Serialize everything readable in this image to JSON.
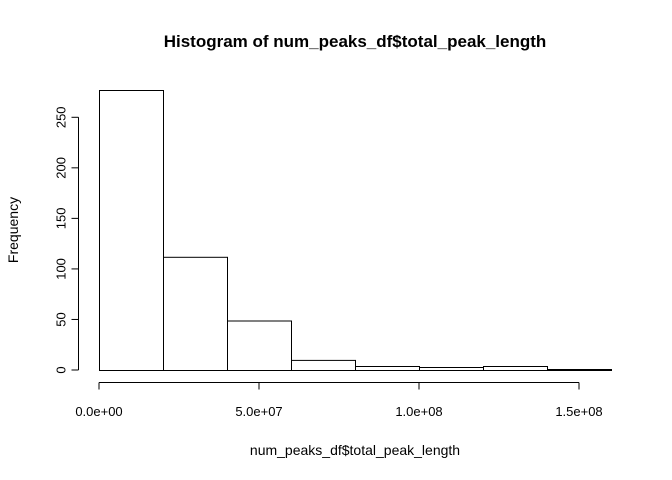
{
  "chart_data": {
    "type": "bar",
    "title": "Histogram of num_peaks_df$total_peak_length",
    "xlabel": "num_peaks_df$total_peak_length",
    "ylabel": "Frequency",
    "bin_edges": [
      0,
      20000000,
      40000000,
      60000000,
      80000000,
      100000000,
      120000000,
      140000000,
      160000000
    ],
    "values": [
      277,
      112,
      49,
      10,
      4,
      3,
      4,
      1
    ],
    "xlim": [
      0,
      160000000
    ],
    "ylim": [
      0,
      277
    ],
    "x_ticks": [
      0,
      50000000,
      100000000,
      150000000
    ],
    "x_tick_labels": [
      "0.0e+00",
      "5.0e+07",
      "1.0e+08",
      "1.5e+08"
    ],
    "y_ticks": [
      0,
      50,
      100,
      150,
      200,
      250
    ],
    "y_tick_labels": [
      "0",
      "50",
      "100",
      "150",
      "200",
      "250"
    ],
    "grid": false,
    "legend": "none"
  }
}
